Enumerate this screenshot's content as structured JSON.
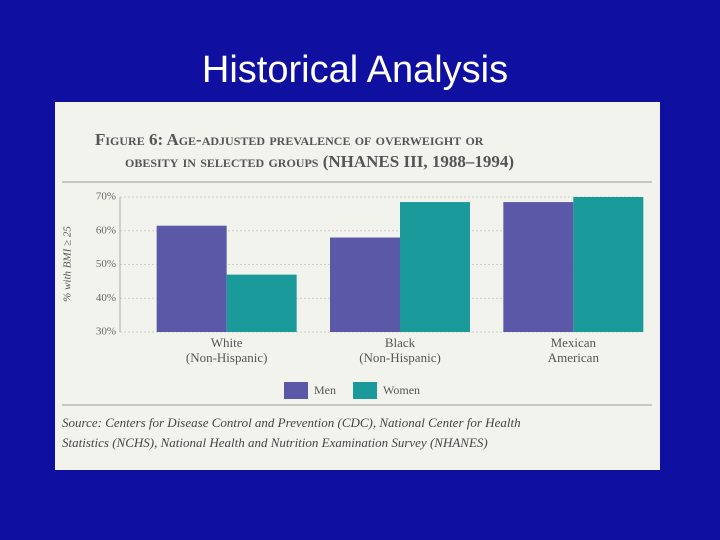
{
  "slide_title": "Historical Analysis",
  "chart_data": {
    "type": "bar",
    "title": [
      "Figure 6: Age-adjusted prevalence of overweight or",
      "obesity in selected groups (NHANES III, 1988–1994)"
    ],
    "y_label": "% with BMI ≥ 25",
    "categories": [
      [
        "White",
        "(Non-Hispanic)"
      ],
      [
        "Black",
        "(Non-Hispanic)"
      ],
      [
        "Mexican",
        "American"
      ]
    ],
    "series": [
      {
        "name": "Men",
        "color": "#5b58a8",
        "values": [
          61.5,
          58,
          68.5
        ]
      },
      {
        "name": "Women",
        "color": "#1a9a9a",
        "values": [
          47,
          68.5,
          70
        ]
      }
    ],
    "ylim": [
      30,
      70
    ],
    "yticks": [
      {
        "value": 30,
        "label": "30%"
      },
      {
        "value": 40,
        "label": "40%"
      },
      {
        "value": 50,
        "label": "50%"
      },
      {
        "value": 60,
        "label": "60%"
      },
      {
        "value": 70,
        "label": "70%"
      }
    ],
    "grid": true,
    "legend": "bottom",
    "source": [
      "Source: Centers for Disease Control and Prevention (CDC), National Center for Health",
      "Statistics (NCHS), National Health and Nutrition Examination Survey (NHANES)"
    ]
  }
}
